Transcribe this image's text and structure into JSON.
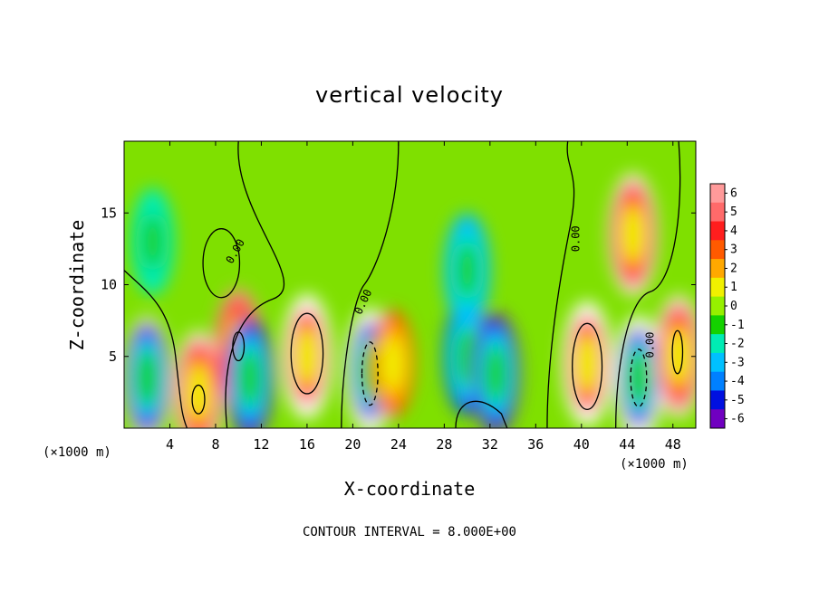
{
  "chart_data": {
    "type": "heatmap",
    "title": "vertical velocity",
    "xlabel": "X-coordinate",
    "ylabel": "Z-coordinate",
    "x_unit": "(×1000 m)",
    "y_unit": "(×1000 m)",
    "xlim": [
      0,
      50
    ],
    "ylim": [
      0,
      20
    ],
    "x_ticks": [
      4,
      8,
      12,
      16,
      20,
      24,
      28,
      32,
      36,
      40,
      44,
      48
    ],
    "y_ticks": [
      5,
      10,
      15
    ],
    "colorbar": {
      "ticks": [
        6,
        5,
        4,
        3,
        2,
        1,
        0,
        -1,
        -2,
        -3,
        -4,
        -5,
        -6
      ],
      "colors": [
        "#ff9a9a",
        "#ff6a6a",
        "#ff1e1e",
        "#ff5a00",
        "#ffa800",
        "#f0f000",
        "#96f000",
        "#14d200",
        "#00ecb4",
        "#00c0ff",
        "#0080ff",
        "#0010e0",
        "#7000c0"
      ]
    },
    "zero_contour_label": "0.00",
    "contour_info": "CONTOUR INTERVAL = 8.000E+00",
    "features": [
      {
        "x": 2.0,
        "z": 3.5,
        "w": -7
      },
      {
        "x": 6.5,
        "z": 2.5,
        "w": 7
      },
      {
        "x": 10.0,
        "z": 5.5,
        "w": 6
      },
      {
        "x": 11.0,
        "z": 3.5,
        "w": -6
      },
      {
        "x": 16.0,
        "z": 5.0,
        "w": 9
      },
      {
        "x": 21.5,
        "z": 4.0,
        "w": -9
      },
      {
        "x": 23.5,
        "z": 4.5,
        "w": 3
      },
      {
        "x": 30.0,
        "z": 5.0,
        "w": -5
      },
      {
        "x": 32.5,
        "z": 3.8,
        "w": -6
      },
      {
        "x": 40.5,
        "z": 4.5,
        "w": 9
      },
      {
        "x": 44.5,
        "z": 13.5,
        "w": 7
      },
      {
        "x": 45.0,
        "z": 3.5,
        "w": -9
      },
      {
        "x": 48.5,
        "z": 5.0,
        "w": 7
      },
      {
        "x": 2.5,
        "z": 13.0,
        "w": -2.5
      },
      {
        "x": 30.0,
        "z": 11.0,
        "w": -3.5
      }
    ]
  }
}
